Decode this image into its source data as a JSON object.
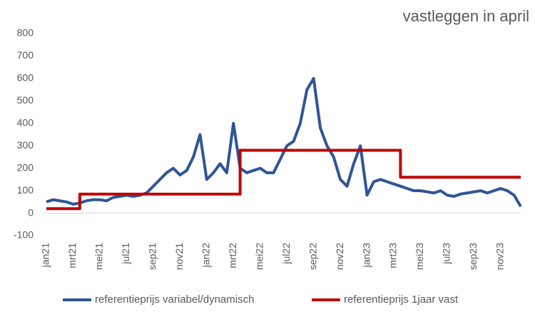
{
  "chart_data": {
    "type": "line",
    "title": "vastleggen in april",
    "categories": [
      "jan21",
      null,
      null,
      null,
      "mrt21",
      null,
      null,
      null,
      "mei21",
      null,
      null,
      null,
      "jul21",
      null,
      null,
      null,
      "sep21",
      null,
      null,
      null,
      "nov21",
      null,
      null,
      null,
      "jan22",
      null,
      null,
      null,
      "mrt22",
      null,
      null,
      null,
      "mei22",
      null,
      null,
      null,
      "jul22",
      null,
      null,
      null,
      "sep22",
      null,
      null,
      null,
      "nov22",
      null,
      null,
      null,
      "jan23",
      null,
      null,
      null,
      "mrt23",
      null,
      null,
      null,
      "mei23",
      null,
      null,
      null,
      "jul23",
      null,
      null,
      null,
      "sep23",
      null,
      null,
      null,
      "nov23",
      null,
      null,
      null
    ],
    "series": [
      {
        "name": "referentieprijs variabel/dynamisch",
        "color": "#2f5597",
        "step": false,
        "values": [
          50,
          60,
          55,
          50,
          40,
          45,
          55,
          60,
          60,
          55,
          70,
          75,
          80,
          75,
          80,
          90,
          120,
          150,
          180,
          200,
          170,
          190,
          250,
          350,
          150,
          180,
          220,
          180,
          400,
          200,
          180,
          190,
          200,
          180,
          180,
          240,
          300,
          320,
          400,
          550,
          600,
          380,
          300,
          250,
          150,
          120,
          220,
          300,
          80,
          140,
          150,
          140,
          130,
          120,
          110,
          100,
          100,
          95,
          90,
          100,
          80,
          75,
          85,
          90,
          95,
          100,
          90,
          100,
          110,
          100,
          80,
          30
        ]
      },
      {
        "name": "referentieprijs 1jaar vast",
        "color": "#c00000",
        "step": true,
        "values": [
          20,
          20,
          20,
          20,
          20,
          85,
          85,
          85,
          85,
          85,
          85,
          85,
          85,
          85,
          85,
          85,
          85,
          85,
          85,
          85,
          85,
          85,
          85,
          85,
          85,
          85,
          85,
          85,
          85,
          280,
          280,
          280,
          280,
          280,
          280,
          280,
          280,
          280,
          280,
          280,
          280,
          280,
          280,
          280,
          280,
          280,
          280,
          280,
          280,
          280,
          280,
          280,
          280,
          160,
          160,
          160,
          160,
          160,
          160,
          160,
          160,
          160,
          160,
          160,
          160,
          160,
          160,
          160,
          160,
          160,
          160,
          160
        ]
      }
    ],
    "ylim": [
      -100,
      800
    ],
    "yticks": [
      -100,
      0,
      100,
      200,
      300,
      400,
      500,
      600,
      700,
      800
    ],
    "grid": false,
    "legend": "bottom"
  }
}
